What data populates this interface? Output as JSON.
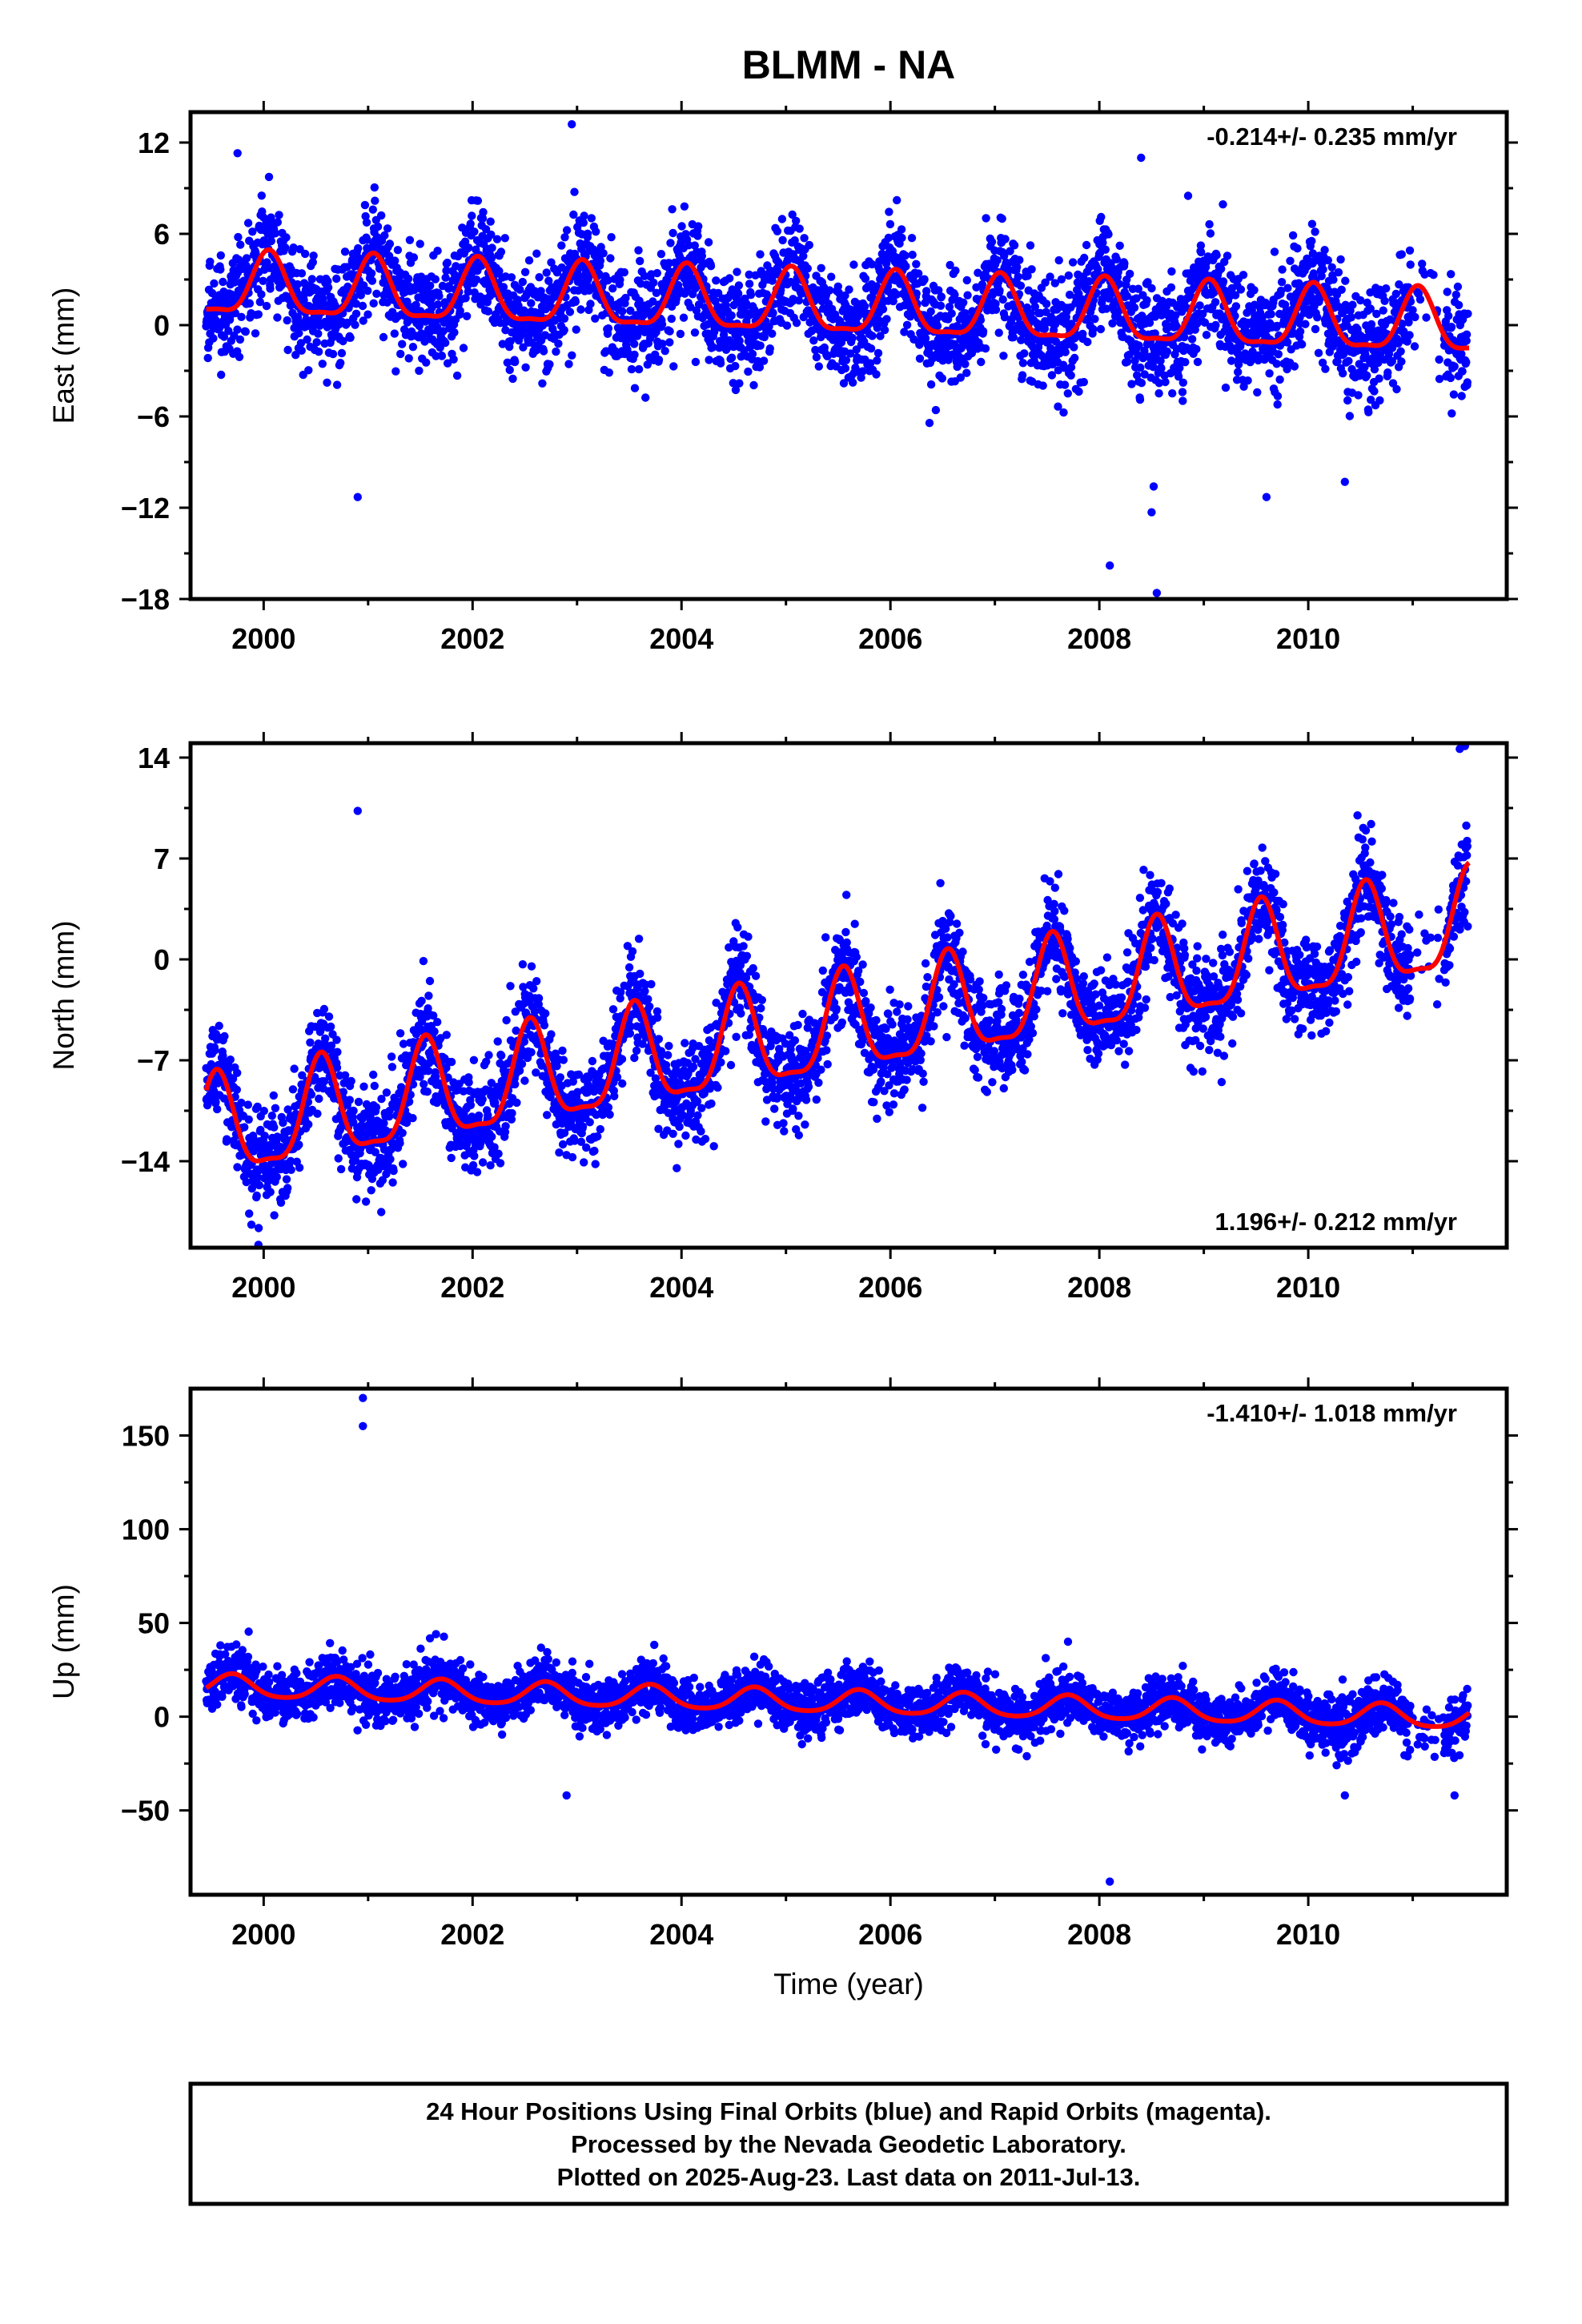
{
  "title": "BLMM - NA",
  "colors": {
    "points": "#0000ff",
    "fit": "#ff0000",
    "frame": "#000000"
  },
  "chart_data": [
    {
      "type": "scatter",
      "component": "east",
      "ylabel": "East (mm)",
      "xlabel": "",
      "xlim": [
        1999.3,
        2011.9
      ],
      "ylim": [
        -18,
        14
      ],
      "xticks": [
        2000,
        2002,
        2004,
        2006,
        2008,
        2010
      ],
      "yticks": [
        -18,
        -12,
        -6,
        0,
        6,
        12
      ],
      "annotation": "-0.214+/- 0.235 mm/yr",
      "annotation_position": "top-right",
      "fit": {
        "trend_mm_per_yr": -0.214,
        "offset": 1.3,
        "annual_amplitude": 2.0,
        "annual_phase_peak": 0.05,
        "semiannual_amplitude": 0.6
      },
      "scatter_sigma": 1.8,
      "outliers": [
        [
          1999.75,
          11.3
        ],
        [
          2002.95,
          13.2
        ],
        [
          2000.9,
          -11.3
        ],
        [
          2008.4,
          11.0
        ],
        [
          2008.85,
          8.5
        ],
        [
          2008.1,
          -15.8
        ],
        [
          2008.55,
          -17.6
        ],
        [
          2008.5,
          -12.3
        ],
        [
          2008.52,
          -10.6
        ],
        [
          2009.6,
          -11.3
        ],
        [
          2010.35,
          -10.3
        ]
      ]
    },
    {
      "type": "scatter",
      "component": "north",
      "ylabel": "North (mm)",
      "xlabel": "",
      "xlim": [
        1999.3,
        2011.9
      ],
      "ylim": [
        -20,
        15
      ],
      "xticks": [
        2000,
        2002,
        2004,
        2006,
        2008,
        2010
      ],
      "yticks": [
        -14,
        -7,
        0,
        7,
        14
      ],
      "annotation": "1.196+/- 0.212 mm/yr",
      "annotation_position": "bottom-right",
      "fit": {
        "trend_mm_per_yr": 1.196,
        "offset": -5.5,
        "annual_amplitude": 3.4,
        "annual_phase_peak": 0.55,
        "semiannual_amplitude": 1.0
      },
      "scatter_sigma": 1.7,
      "outliers": [
        [
          2000.9,
          10.3
        ],
        [
          1999.95,
          -19.8
        ],
        [
          1999.9,
          -15.3
        ],
        [
          2011.5,
          14.8
        ],
        [
          2011.45,
          14.6
        ],
        [
          2009.1,
          -2.6
        ]
      ]
    },
    {
      "type": "scatter",
      "component": "up",
      "ylabel": "Up (mm)",
      "xlabel": "Time (year)",
      "xlim": [
        1999.3,
        2011.9
      ],
      "ylim": [
        -95,
        175
      ],
      "xticks": [
        2000,
        2002,
        2004,
        2006,
        2008,
        2010
      ],
      "yticks": [
        -50,
        0,
        50,
        100,
        150
      ],
      "annotation": "-1.410+/- 1.018 mm/yr",
      "annotation_position": "top-right",
      "fit": {
        "trend_mm_per_yr": -1.41,
        "offset": 8.5,
        "annual_amplitude": 6.0,
        "annual_phase_peak": 0.7,
        "semiannual_amplitude": 1.0
      },
      "scatter_sigma": 7.0,
      "outliers": [
        [
          2000.95,
          170
        ],
        [
          2000.95,
          155
        ],
        [
          2008.1,
          -88
        ],
        [
          2002.9,
          -42
        ],
        [
          2010.35,
          -42
        ],
        [
          2011.4,
          -42
        ],
        [
          2001.65,
          44
        ],
        [
          2007.7,
          40
        ]
      ]
    }
  ],
  "footer": {
    "line1": "24 Hour Positions Using Final Orbits (blue) and Rapid Orbits (magenta).",
    "line2": "Processed by the Nevada Geodetic Laboratory.",
    "line3": "Plotted on 2025-Aug-23. Last data on 2011-Jul-13."
  }
}
